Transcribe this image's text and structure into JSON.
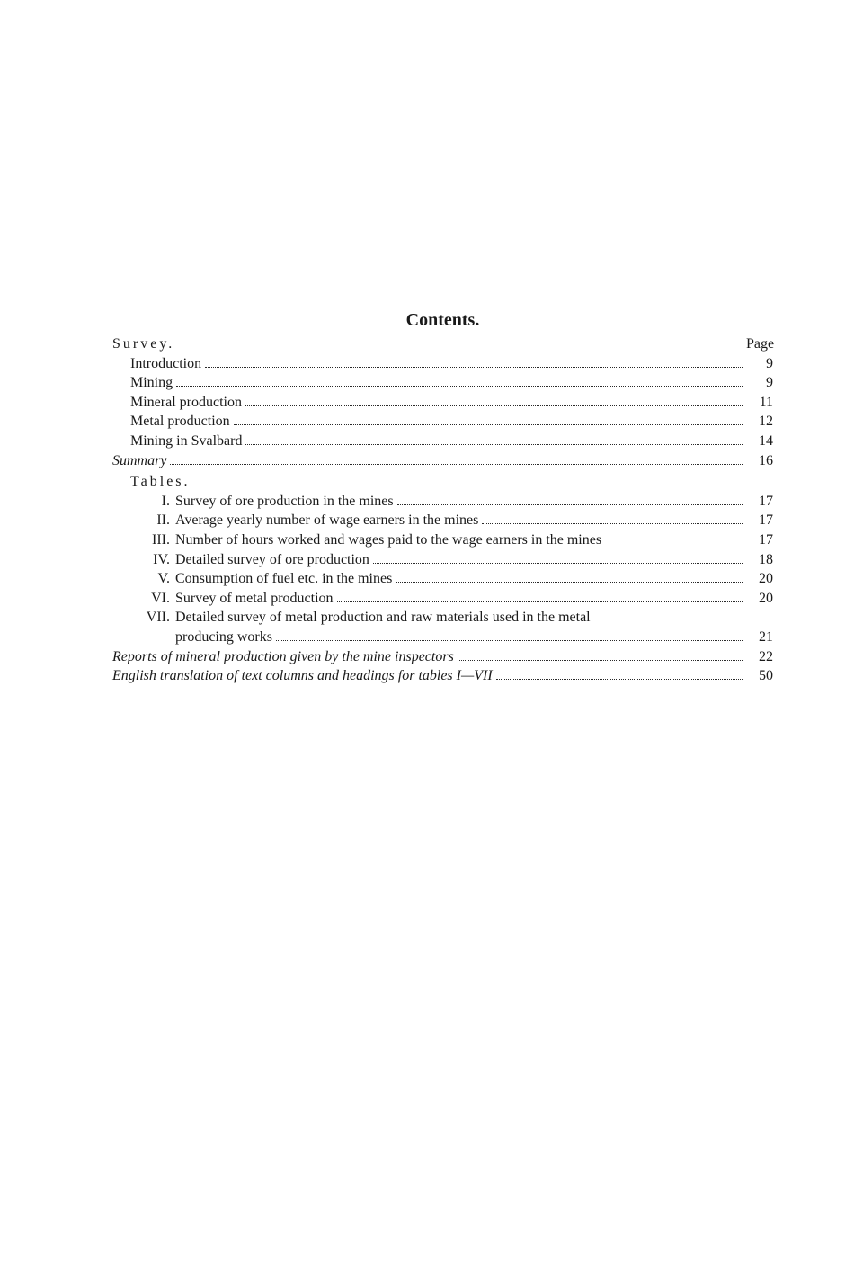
{
  "title": "Contents.",
  "page_label": "Page",
  "survey_heading": "Survey.",
  "survey_items": [
    {
      "label": "Introduction",
      "page": "9"
    },
    {
      "label": "Mining",
      "page": "9"
    },
    {
      "label": "Mineral production",
      "page": "11"
    },
    {
      "label": "Metal production",
      "page": "12"
    },
    {
      "label": "Mining in Svalbard",
      "page": "14"
    }
  ],
  "summary": {
    "label": "Summary",
    "page": "16"
  },
  "tables_heading": "Tables.",
  "tables": [
    {
      "roman": "I.",
      "label": "Survey of ore production in the mines",
      "page": "17",
      "leader": true
    },
    {
      "roman": "II.",
      "label": "Average yearly number of wage earners in the mines",
      "page": "17",
      "leader": true
    },
    {
      "roman": "III.",
      "label": "Number of hours worked and wages paid to the wage earners in the mines",
      "page": "17",
      "leader": false
    },
    {
      "roman": "IV.",
      "label": "Detailed survey of ore production",
      "page": "18",
      "leader": true
    },
    {
      "roman": "V.",
      "label": "Consumption of fuel etc. in the mines",
      "page": "20",
      "leader": true
    },
    {
      "roman": "VI.",
      "label": "Survey of metal production",
      "page": "20",
      "leader": true
    }
  ],
  "table_vii": {
    "roman": "VII.",
    "line1": "Detailed survey of metal production and raw materials used in the metal",
    "line2": "producing works",
    "page": "21"
  },
  "footer_lines": [
    {
      "label": "Reports of mineral production given by the mine inspectors",
      "page": "22"
    },
    {
      "label": "English translation of text columns and headings for tables I—VII",
      "page": "50"
    }
  ]
}
